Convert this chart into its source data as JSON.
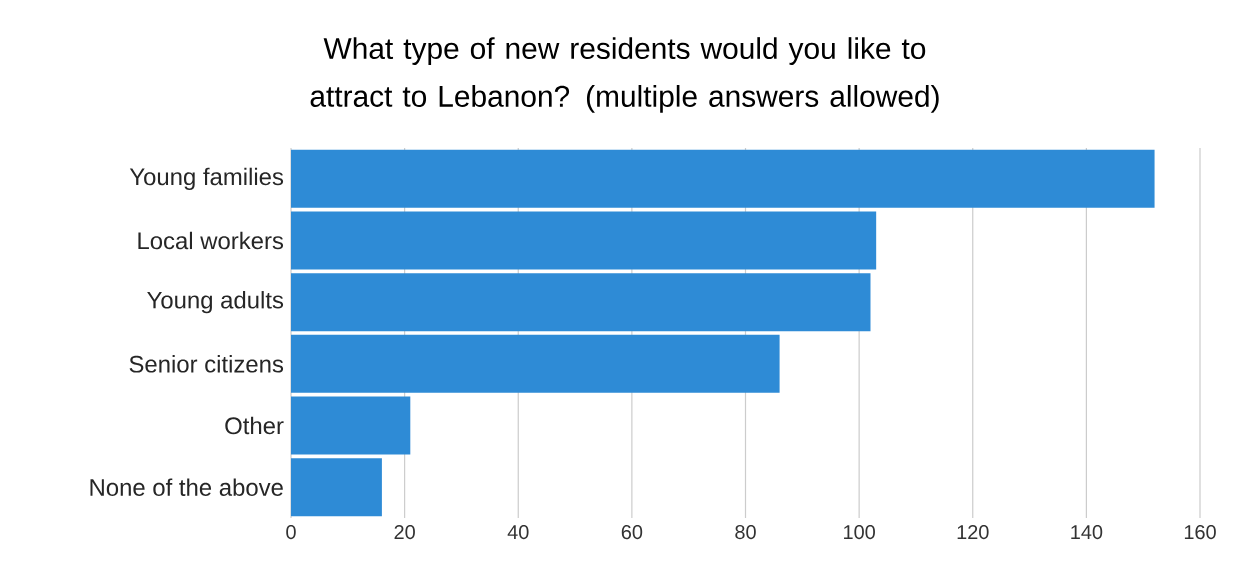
{
  "chart_data": {
    "type": "bar",
    "orientation": "horizontal",
    "title": "What type of new residents would you like to attract to Lebanon? (multiple answers allowed)",
    "categories": [
      "Young families",
      "Local workers",
      "Young adults",
      "Senior citizens",
      "Other",
      "None of the above"
    ],
    "values": [
      152,
      103,
      102,
      86,
      21,
      16
    ],
    "color": "#2e8bd6",
    "xlim": [
      0,
      160
    ],
    "xticks": [
      0,
      20,
      40,
      60,
      80,
      100,
      120,
      140,
      160
    ],
    "grid": "x"
  }
}
